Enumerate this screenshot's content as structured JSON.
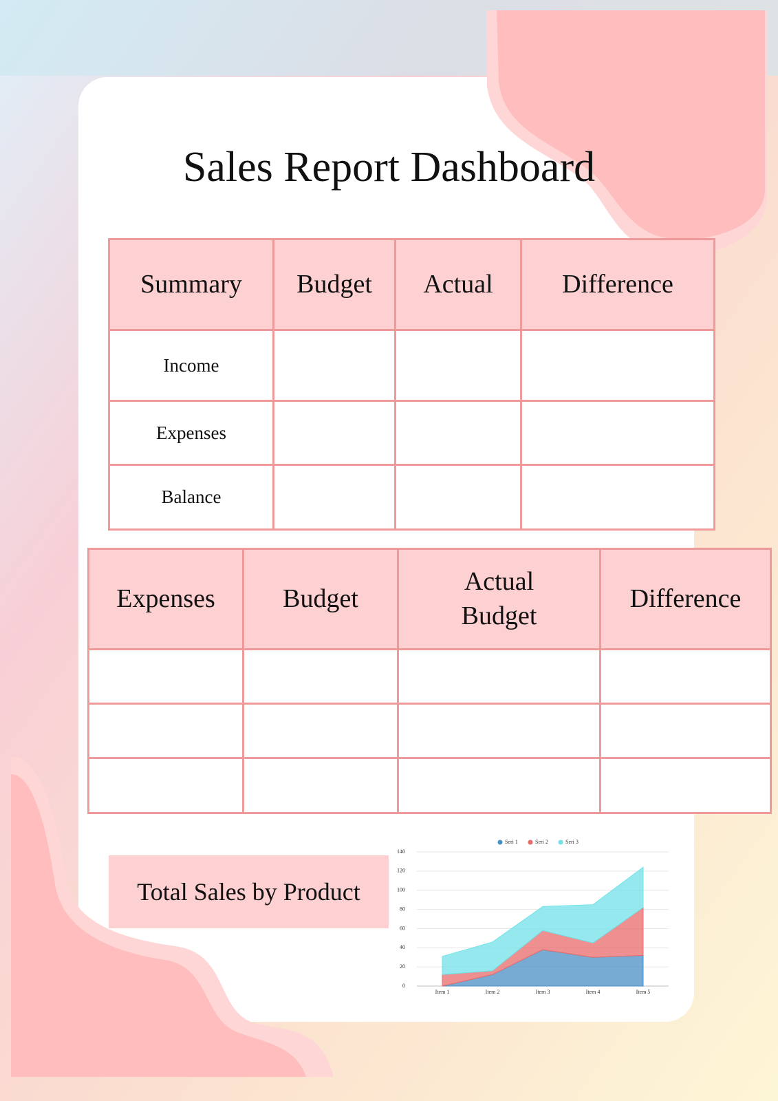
{
  "title": "Sales Report Dashboard",
  "summary_table": {
    "headers": [
      "Summary",
      "Budget",
      "Actual",
      "Difference"
    ],
    "rows": [
      "Income",
      "Expenses",
      "Balance"
    ]
  },
  "expenses_table": {
    "headers": [
      "Expenses",
      "Budget",
      "Actual Budget",
      "Difference"
    ]
  },
  "total_sales_label": "Total Sales by Product",
  "chart_data": {
    "type": "area",
    "stacked": true,
    "categories": [
      "Item 1",
      "Item 2",
      "Item 3",
      "Item 4",
      "Item 5"
    ],
    "series": [
      {
        "name": "Seri 1",
        "color": "#4a8fc4",
        "values": [
          0,
          12,
          38,
          30,
          32
        ]
      },
      {
        "name": "Seri 2",
        "color": "#e86b6b",
        "values": [
          12,
          4,
          20,
          15,
          50
        ]
      },
      {
        "name": "Seri 3",
        "color": "#72e2e8",
        "values": [
          19,
          30,
          25,
          40,
          42
        ]
      }
    ],
    "ylim": [
      0,
      140
    ],
    "yticks": [
      0,
      20,
      40,
      60,
      80,
      100,
      120,
      140
    ],
    "grid": true,
    "legend": "top"
  }
}
